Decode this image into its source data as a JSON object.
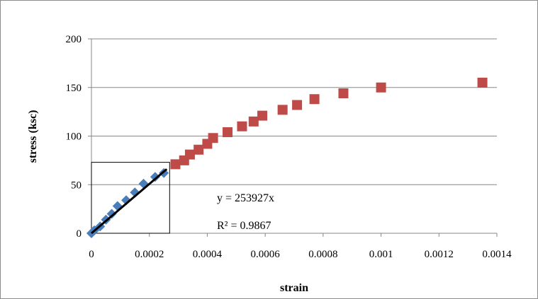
{
  "chart_data": {
    "type": "scatter",
    "title": "",
    "xlabel": "strain",
    "ylabel": "stress (ksc)",
    "xlim": [
      0,
      0.0014
    ],
    "ylim": [
      0,
      200
    ],
    "x_ticks": [
      "0",
      "0.0002",
      "0.0004",
      "0.0006",
      "0.0008",
      "0.001",
      "0.0012",
      "0.0014"
    ],
    "y_ticks": [
      "0",
      "50",
      "100",
      "150",
      "200"
    ],
    "grid": "horizontal",
    "legend": "none",
    "series": [
      {
        "marker": "diamond",
        "color": "#4a7ebb",
        "x": [
          0,
          1e-05,
          3e-05,
          5e-05,
          7e-05,
          9e-05,
          0.00012,
          0.00015,
          0.00018,
          0.00022,
          0.00025
        ],
        "y": [
          0,
          3,
          7,
          14,
          20,
          28,
          34,
          42,
          51,
          58,
          62
        ]
      },
      {
        "marker": "square",
        "color": "#be4b48",
        "x": [
          0.00029,
          0.00032,
          0.00034,
          0.00037,
          0.0004,
          0.00042,
          0.00047,
          0.00052,
          0.00056,
          0.00059,
          0.00066,
          0.00071,
          0.00077,
          0.00087,
          0.001,
          0.00135
        ],
        "y": [
          71,
          75,
          81,
          86,
          92,
          98,
          104,
          110,
          115,
          121,
          127,
          132,
          138,
          144,
          150,
          155
        ]
      }
    ],
    "trendline": {
      "color": "#000000",
      "x": [
        0,
        0.00026
      ],
      "y": [
        0,
        66
      ],
      "equation": "y = 253927x",
      "r_squared": "R² = 0.9867"
    },
    "annotation_box": {
      "x": [
        0,
        0.00027
      ],
      "y": [
        0,
        73
      ]
    }
  }
}
